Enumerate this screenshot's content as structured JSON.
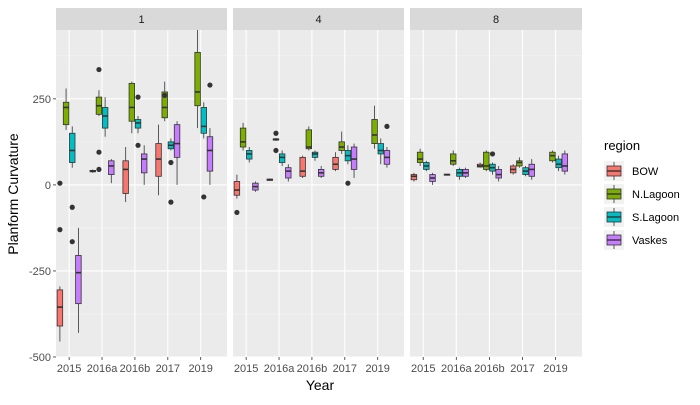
{
  "chart_data": {
    "type": "boxplot",
    "title": "",
    "xlabel": "Year",
    "ylabel": "Planform Curvature",
    "ylim": [
      -500,
      450
    ],
    "yticks": [
      -500,
      -250,
      0,
      250
    ],
    "grid": true,
    "legend": {
      "title": "region",
      "position": "right"
    },
    "categories": [
      "2015",
      "2016a",
      "2016b",
      "2017",
      "2019"
    ],
    "facets": [
      "1",
      "4",
      "8"
    ],
    "series": [
      {
        "name": "BOW",
        "color": "#F8766D"
      },
      {
        "name": "N.Lagoon",
        "color": "#7CAE00"
      },
      {
        "name": "S.Lagoon",
        "color": "#00BFC4"
      },
      {
        "name": "Vaskes",
        "color": "#C77CFF"
      }
    ],
    "boxes": [
      {
        "facet": "1",
        "category": "2015",
        "series": "BOW",
        "whisker_low": -455,
        "q1": -410,
        "median": -355,
        "q3": -305,
        "whisker_high": -295,
        "outliers": [
          -130,
          5
        ]
      },
      {
        "facet": "1",
        "category": "2015",
        "series": "N.Lagoon",
        "whisker_low": 160,
        "q1": 175,
        "median": 225,
        "q3": 240,
        "whisker_high": 280,
        "outliers": []
      },
      {
        "facet": "1",
        "category": "2015",
        "series": "S.Lagoon",
        "whisker_low": 50,
        "q1": 65,
        "median": 100,
        "q3": 150,
        "whisker_high": 170,
        "outliers": [
          -65,
          -165
        ]
      },
      {
        "facet": "1",
        "category": "2015",
        "series": "Vaskes",
        "whisker_low": -430,
        "q1": -345,
        "median": -255,
        "q3": -205,
        "whisker_high": -125,
        "outliers": []
      },
      {
        "facet": "1",
        "category": "2016a",
        "series": "BOW",
        "whisker_low": 35,
        "q1": 38,
        "median": 40,
        "q3": 42,
        "whisker_high": 45,
        "outliers": []
      },
      {
        "facet": "1",
        "category": "2016a",
        "series": "N.Lagoon",
        "whisker_low": 200,
        "q1": 205,
        "median": 230,
        "q3": 255,
        "whisker_high": 275,
        "outliers": [
          335,
          95,
          45
        ]
      },
      {
        "facet": "1",
        "category": "2016a",
        "series": "S.Lagoon",
        "whisker_low": 140,
        "q1": 165,
        "median": 200,
        "q3": 225,
        "whisker_high": 255,
        "outliers": []
      },
      {
        "facet": "1",
        "category": "2016a",
        "series": "Vaskes",
        "whisker_low": 5,
        "q1": 30,
        "median": 55,
        "q3": 70,
        "whisker_high": 75,
        "outliers": []
      },
      {
        "facet": "1",
        "category": "2016b",
        "series": "BOW",
        "whisker_low": -50,
        "q1": -25,
        "median": 45,
        "q3": 70,
        "whisker_high": 110,
        "outliers": []
      },
      {
        "facet": "1",
        "category": "2016b",
        "series": "N.Lagoon",
        "whisker_low": 150,
        "q1": 185,
        "median": 225,
        "q3": 295,
        "whisker_high": 300,
        "outliers": []
      },
      {
        "facet": "1",
        "category": "2016b",
        "series": "S.Lagoon",
        "whisker_low": 150,
        "q1": 165,
        "median": 180,
        "q3": 190,
        "whisker_high": 200,
        "outliers": [
          255,
          115
        ]
      },
      {
        "facet": "1",
        "category": "2016b",
        "series": "Vaskes",
        "whisker_low": 0,
        "q1": 35,
        "median": 75,
        "q3": 90,
        "whisker_high": 115,
        "outliers": []
      },
      {
        "facet": "1",
        "category": "2017",
        "series": "BOW",
        "whisker_low": -30,
        "q1": 25,
        "median": 75,
        "q3": 120,
        "whisker_high": 175,
        "outliers": []
      },
      {
        "facet": "1",
        "category": "2017",
        "series": "N.Lagoon",
        "whisker_low": 185,
        "q1": 195,
        "median": 225,
        "q3": 270,
        "whisker_high": 300,
        "outliers": [
          260
        ]
      },
      {
        "facet": "1",
        "category": "2017",
        "series": "S.Lagoon",
        "whisker_low": 100,
        "q1": 105,
        "median": 115,
        "q3": 125,
        "whisker_high": 135,
        "outliers": [
          -50,
          65
        ]
      },
      {
        "facet": "1",
        "category": "2017",
        "series": "Vaskes",
        "whisker_low": 0,
        "q1": 80,
        "median": 120,
        "q3": 175,
        "whisker_high": 185,
        "outliers": []
      },
      {
        "facet": "1",
        "category": "2019",
        "series": "N.Lagoon",
        "whisker_low": 165,
        "q1": 230,
        "median": 270,
        "q3": 385,
        "whisker_high": 450,
        "outliers": []
      },
      {
        "facet": "1",
        "category": "2019",
        "series": "S.Lagoon",
        "whisker_low": 135,
        "q1": 150,
        "median": 170,
        "q3": 225,
        "whisker_high": 240,
        "outliers": [
          -35
        ]
      },
      {
        "facet": "1",
        "category": "2019",
        "series": "Vaskes",
        "whisker_low": 0,
        "q1": 40,
        "median": 100,
        "q3": 140,
        "whisker_high": 165,
        "outliers": [
          290
        ]
      },
      {
        "facet": "4",
        "category": "2015",
        "series": "BOW",
        "whisker_low": -40,
        "q1": -30,
        "median": -15,
        "q3": 10,
        "whisker_high": 30,
        "outliers": [
          -80
        ]
      },
      {
        "facet": "4",
        "category": "2015",
        "series": "N.Lagoon",
        "whisker_low": 100,
        "q1": 110,
        "median": 125,
        "q3": 165,
        "whisker_high": 180,
        "outliers": []
      },
      {
        "facet": "4",
        "category": "2015",
        "series": "S.Lagoon",
        "whisker_low": 65,
        "q1": 75,
        "median": 90,
        "q3": 100,
        "whisker_high": 110,
        "outliers": []
      },
      {
        "facet": "4",
        "category": "2015",
        "series": "Vaskes",
        "whisker_low": -20,
        "q1": -15,
        "median": -5,
        "q3": 5,
        "whisker_high": 10,
        "outliers": []
      },
      {
        "facet": "4",
        "category": "2016a",
        "series": "BOW",
        "whisker_low": 12,
        "q1": 13,
        "median": 15,
        "q3": 17,
        "whisker_high": 18,
        "outliers": []
      },
      {
        "facet": "4",
        "category": "2016a",
        "series": "N.Lagoon",
        "whisker_low": 128,
        "q1": 130,
        "median": 132,
        "q3": 134,
        "whisker_high": 136,
        "outliers": [
          150,
          100
        ]
      },
      {
        "facet": "4",
        "category": "2016a",
        "series": "S.Lagoon",
        "whisker_low": 55,
        "q1": 65,
        "median": 80,
        "q3": 90,
        "whisker_high": 100,
        "outliers": []
      },
      {
        "facet": "4",
        "category": "2016a",
        "series": "Vaskes",
        "whisker_low": 10,
        "q1": 20,
        "median": 40,
        "q3": 50,
        "whisker_high": 60,
        "outliers": []
      },
      {
        "facet": "4",
        "category": "2016b",
        "series": "BOW",
        "whisker_low": 20,
        "q1": 25,
        "median": 40,
        "q3": 80,
        "whisker_high": 85,
        "outliers": []
      },
      {
        "facet": "4",
        "category": "2016b",
        "series": "N.Lagoon",
        "whisker_low": 100,
        "q1": 105,
        "median": 110,
        "q3": 160,
        "whisker_high": 170,
        "outliers": []
      },
      {
        "facet": "4",
        "category": "2016b",
        "series": "S.Lagoon",
        "whisker_low": 70,
        "q1": 80,
        "median": 90,
        "q3": 95,
        "whisker_high": 100,
        "outliers": []
      },
      {
        "facet": "4",
        "category": "2016b",
        "series": "Vaskes",
        "whisker_low": 20,
        "q1": 25,
        "median": 35,
        "q3": 45,
        "whisker_high": 55,
        "outliers": []
      },
      {
        "facet": "4",
        "category": "2017",
        "series": "BOW",
        "whisker_low": 40,
        "q1": 45,
        "median": 60,
        "q3": 80,
        "whisker_high": 95,
        "outliers": []
      },
      {
        "facet": "4",
        "category": "2017",
        "series": "N.Lagoon",
        "whisker_low": 90,
        "q1": 100,
        "median": 110,
        "q3": 125,
        "whisker_high": 155,
        "outliers": []
      },
      {
        "facet": "4",
        "category": "2017",
        "series": "S.Lagoon",
        "whisker_low": 60,
        "q1": 70,
        "median": 85,
        "q3": 100,
        "whisker_high": 115,
        "outliers": [
          5
        ]
      },
      {
        "facet": "4",
        "category": "2017",
        "series": "Vaskes",
        "whisker_low": 20,
        "q1": 45,
        "median": 75,
        "q3": 110,
        "whisker_high": 120,
        "outliers": []
      },
      {
        "facet": "4",
        "category": "2019",
        "series": "N.Lagoon",
        "whisker_low": 105,
        "q1": 120,
        "median": 145,
        "q3": 190,
        "whisker_high": 230,
        "outliers": []
      },
      {
        "facet": "4",
        "category": "2019",
        "series": "S.Lagoon",
        "whisker_low": 60,
        "q1": 90,
        "median": 100,
        "q3": 120,
        "whisker_high": 135,
        "outliers": []
      },
      {
        "facet": "4",
        "category": "2019",
        "series": "Vaskes",
        "whisker_low": 50,
        "q1": 60,
        "median": 80,
        "q3": 100,
        "whisker_high": 110,
        "outliers": [
          170
        ]
      },
      {
        "facet": "8",
        "category": "2015",
        "series": "BOW",
        "whisker_low": 10,
        "q1": 15,
        "median": 25,
        "q3": 30,
        "whisker_high": 35,
        "outliers": []
      },
      {
        "facet": "8",
        "category": "2015",
        "series": "N.Lagoon",
        "whisker_low": 55,
        "q1": 65,
        "median": 75,
        "q3": 95,
        "whisker_high": 105,
        "outliers": []
      },
      {
        "facet": "8",
        "category": "2015",
        "series": "S.Lagoon",
        "whisker_low": 40,
        "q1": 45,
        "median": 55,
        "q3": 65,
        "whisker_high": 70,
        "outliers": []
      },
      {
        "facet": "8",
        "category": "2015",
        "series": "Vaskes",
        "whisker_low": 0,
        "q1": 10,
        "median": 20,
        "q3": 30,
        "whisker_high": 35,
        "outliers": []
      },
      {
        "facet": "8",
        "category": "2016a",
        "series": "BOW",
        "whisker_low": 27,
        "q1": 28,
        "median": 30,
        "q3": 31,
        "whisker_high": 32,
        "outliers": []
      },
      {
        "facet": "8",
        "category": "2016a",
        "series": "N.Lagoon",
        "whisker_low": 55,
        "q1": 60,
        "median": 70,
        "q3": 90,
        "whisker_high": 100,
        "outliers": []
      },
      {
        "facet": "8",
        "category": "2016a",
        "series": "S.Lagoon",
        "whisker_low": 15,
        "q1": 25,
        "median": 35,
        "q3": 45,
        "whisker_high": 50,
        "outliers": []
      },
      {
        "facet": "8",
        "category": "2016a",
        "series": "Vaskes",
        "whisker_low": 20,
        "q1": 25,
        "median": 35,
        "q3": 45,
        "whisker_high": 50,
        "outliers": []
      },
      {
        "facet": "8",
        "category": "2016b",
        "series": "BOW",
        "whisker_low": 50,
        "q1": 52,
        "median": 55,
        "q3": 60,
        "whisker_high": 65,
        "outliers": []
      },
      {
        "facet": "8",
        "category": "2016b",
        "series": "N.Lagoon",
        "whisker_low": 40,
        "q1": 45,
        "median": 55,
        "q3": 95,
        "whisker_high": 100,
        "outliers": []
      },
      {
        "facet": "8",
        "category": "2016b",
        "series": "S.Lagoon",
        "whisker_low": 30,
        "q1": 40,
        "median": 50,
        "q3": 60,
        "whisker_high": 65,
        "outliers": [
          90
        ]
      },
      {
        "facet": "8",
        "category": "2016b",
        "series": "Vaskes",
        "whisker_low": 10,
        "q1": 20,
        "median": 30,
        "q3": 45,
        "whisker_high": 55,
        "outliers": []
      },
      {
        "facet": "8",
        "category": "2017",
        "series": "BOW",
        "whisker_low": 30,
        "q1": 35,
        "median": 45,
        "q3": 55,
        "whisker_high": 60,
        "outliers": []
      },
      {
        "facet": "8",
        "category": "2017",
        "series": "N.Lagoon",
        "whisker_low": 50,
        "q1": 55,
        "median": 65,
        "q3": 70,
        "whisker_high": 80,
        "outliers": []
      },
      {
        "facet": "8",
        "category": "2017",
        "series": "S.Lagoon",
        "whisker_low": 25,
        "q1": 30,
        "median": 40,
        "q3": 50,
        "whisker_high": 55,
        "outliers": []
      },
      {
        "facet": "8",
        "category": "2017",
        "series": "Vaskes",
        "whisker_low": 15,
        "q1": 25,
        "median": 45,
        "q3": 60,
        "whisker_high": 75,
        "outliers": []
      },
      {
        "facet": "8",
        "category": "2019",
        "series": "N.Lagoon",
        "whisker_low": 65,
        "q1": 70,
        "median": 85,
        "q3": 95,
        "whisker_high": 100,
        "outliers": []
      },
      {
        "facet": "8",
        "category": "2019",
        "series": "S.Lagoon",
        "whisker_low": 40,
        "q1": 50,
        "median": 60,
        "q3": 75,
        "whisker_high": 85,
        "outliers": []
      },
      {
        "facet": "8",
        "category": "2019",
        "series": "Vaskes",
        "whisker_low": 30,
        "q1": 40,
        "median": 55,
        "q3": 90,
        "whisker_high": 100,
        "outliers": []
      }
    ]
  }
}
